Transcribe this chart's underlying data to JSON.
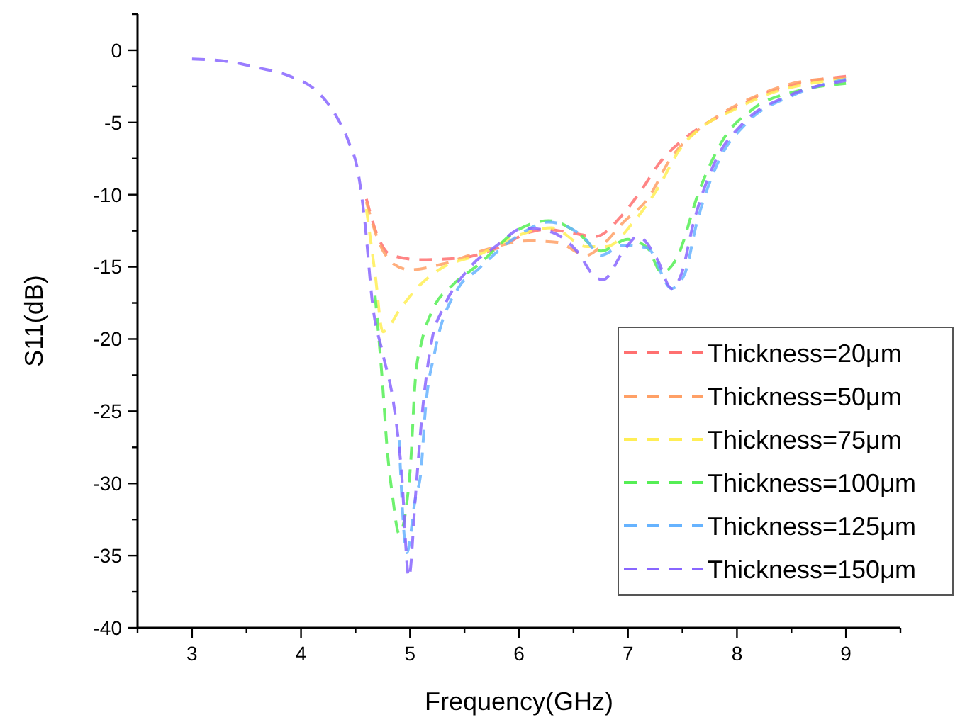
{
  "chart_data": {
    "type": "line",
    "xlabel": "Frequency(GHz)",
    "ylabel": "S11(dB)",
    "xlim": [
      2.5,
      9.5
    ],
    "ylim": [
      -40,
      2.5
    ],
    "xticks": [
      {
        "value": 2.5,
        "label": null
      },
      3,
      {
        "value": 3.5,
        "label": null
      },
      4,
      {
        "value": 4.5,
        "label": null
      },
      5,
      {
        "value": 5.5,
        "label": null
      },
      6,
      {
        "value": 6.5,
        "label": null
      },
      7,
      {
        "value": 7.5,
        "label": null
      },
      8,
      {
        "value": 8.5,
        "label": null
      },
      9,
      {
        "value": 9.5,
        "label": null
      }
    ],
    "yticks": [
      -40,
      {
        "value": -37.5,
        "label": null
      },
      -35,
      {
        "value": -32.5,
        "label": null
      },
      -30,
      {
        "value": -27.5,
        "label": null
      },
      -25,
      {
        "value": -22.5,
        "label": null
      },
      -20,
      {
        "value": -17.5,
        "label": null
      },
      -15,
      {
        "value": -12.5,
        "label": null
      },
      -10,
      {
        "value": -7.5,
        "label": null
      },
      -5,
      {
        "value": -2.5,
        "label": null
      },
      0,
      {
        "value": 2.5,
        "label": null
      }
    ],
    "grid": false,
    "legend": "bottom right",
    "marker": "none",
    "line_style": "dashed",
    "series": [
      {
        "name": "Thickness=20μm",
        "color": "#ff7070",
        "x": [
          4.6,
          4.68,
          4.83,
          5.1,
          5.45,
          5.8,
          6.1,
          6.25,
          6.45,
          6.7,
          6.96,
          7.13,
          7.3,
          7.52,
          7.88,
          8.23,
          8.57,
          9
        ],
        "values": [
          -10.3,
          -12.4,
          -14.2,
          -14.5,
          -14.4,
          -13.7,
          -12.6,
          -12.4,
          -12.6,
          -12.9,
          -11.3,
          -9.6,
          -7.7,
          -6.1,
          -4.4,
          -3.1,
          -2.3,
          -1.8
        ]
      },
      {
        "name": "Thickness=50μm",
        "color": "#ffa066",
        "x": [
          4.6,
          4.7,
          4.85,
          5.0,
          5.3,
          5.7,
          6.08,
          6.35,
          6.62,
          6.75,
          6.96,
          7.18,
          7.4,
          7.6,
          7.88,
          8.23,
          8.57,
          9
        ],
        "values": [
          -10.5,
          -13,
          -14.8,
          -15.2,
          -14.8,
          -13.8,
          -13.2,
          -13.3,
          -14.2,
          -13.6,
          -11.9,
          -10.3,
          -7.4,
          -5.8,
          -4.3,
          -3,
          -2.2,
          -1.9
        ]
      },
      {
        "name": "Thickness=75μm",
        "color": "#ffee55",
        "x": [
          4.6,
          4.68,
          4.75,
          4.92,
          5.1,
          5.31,
          5.62,
          6.0,
          6.3,
          6.62,
          6.8,
          7.05,
          7.27,
          7.49,
          7.7,
          7.95,
          8.3,
          8.6,
          9
        ],
        "values": [
          -11,
          -15.5,
          -19.5,
          -17.8,
          -16.2,
          -15,
          -14.2,
          -12.8,
          -12.3,
          -13.6,
          -13.6,
          -11.9,
          -9.6,
          -6.7,
          -5.2,
          -4.2,
          -3.0,
          -2.4,
          -2.0
        ]
      },
      {
        "name": "Thickness=100μm",
        "color": "#55ee55",
        "x": [
          4.68,
          4.75,
          4.79,
          4.84,
          4.9,
          5.0,
          5.05,
          5.11,
          5.2,
          5.4,
          5.62,
          6.0,
          6.27,
          6.53,
          6.75,
          7.0,
          7.18,
          7.31,
          7.44,
          7.66,
          7.88,
          8.14,
          8.57,
          9
        ],
        "values": [
          -17,
          -23.3,
          -27.6,
          -30.9,
          -33.5,
          -29.2,
          -22.7,
          -20.1,
          -18.1,
          -16.2,
          -14.9,
          -12.4,
          -11.8,
          -12.6,
          -13.9,
          -13.1,
          -13.7,
          -15.4,
          -14.5,
          -9.6,
          -6.1,
          -4.1,
          -2.8,
          -2.3
        ]
      },
      {
        "name": "Thickness=125μm",
        "color": "#66b3ff",
        "x": [
          4.9,
          4.97,
          5.05,
          5.1,
          5.14,
          5.23,
          5.44,
          5.62,
          6.0,
          6.27,
          6.6,
          6.75,
          6.96,
          7.18,
          7.4,
          7.52,
          7.63,
          7.83,
          8.08,
          8.52,
          9
        ],
        "values": [
          -27,
          -34.8,
          -31,
          -29.2,
          -25,
          -20.8,
          -16.5,
          -15.2,
          -12.8,
          -11.9,
          -13,
          -14.2,
          -13.5,
          -13.7,
          -16.5,
          -15.5,
          -12,
          -7.7,
          -5.1,
          -3.1,
          -2.0
        ]
      },
      {
        "name": "Thickness=150μm",
        "color": "#8866ff",
        "x": [
          3,
          3.35,
          3.6,
          3.9,
          4.14,
          4.31,
          4.44,
          4.52,
          4.58,
          4.66,
          4.75,
          4.85,
          4.92,
          4.99,
          5.05,
          5.11,
          5.2,
          5.31,
          5.53,
          5.8,
          6.05,
          6.3,
          6.53,
          6.7,
          6.77,
          6.96,
          7.09,
          7.27,
          7.4,
          7.49,
          7.6,
          7.8,
          8.05,
          8.49,
          9
        ],
        "values": [
          -0.6,
          -0.8,
          -1.2,
          -1.8,
          -2.8,
          -4.4,
          -6.4,
          -8.3,
          -11.5,
          -17.8,
          -21,
          -24.5,
          -29,
          -36.5,
          -30.9,
          -25.3,
          -20.1,
          -17.8,
          -15.2,
          -13.5,
          -12.3,
          -12.6,
          -13.9,
          -15.7,
          -15.9,
          -13.9,
          -12.9,
          -14.5,
          -16.5,
          -15.5,
          -12,
          -7.7,
          -5.1,
          -3.1,
          -2.1
        ]
      }
    ]
  }
}
